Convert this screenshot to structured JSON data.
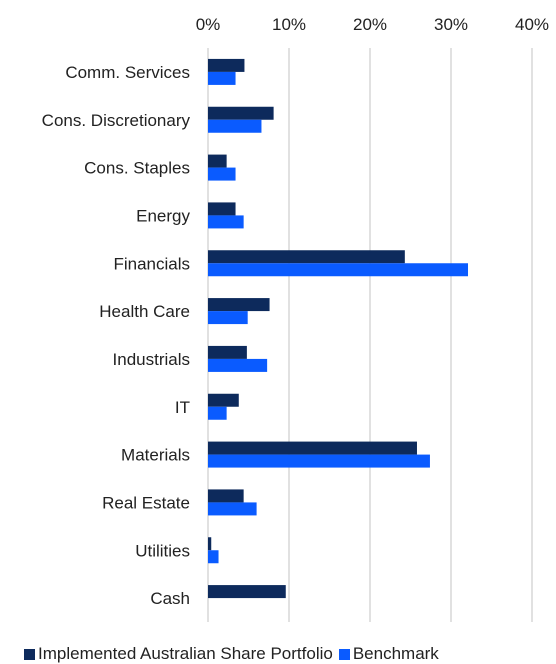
{
  "chart_data": {
    "type": "bar",
    "orientation": "horizontal",
    "categories": [
      "Comm. Services",
      "Cons. Discretionary",
      "Cons. Staples",
      "Energy",
      "Financials",
      "Health Care",
      "Industrials",
      "IT",
      "Materials",
      "Real Estate",
      "Utilities",
      "Cash"
    ],
    "series": [
      {
        "name": "Implemented Australian Share Portfolio",
        "color": "#0d2a5c",
        "values": [
          4.5,
          8.1,
          2.3,
          3.4,
          24.3,
          7.6,
          4.8,
          3.8,
          25.8,
          4.4,
          0.4,
          9.6
        ]
      },
      {
        "name": "Benchmark",
        "color": "#0a5bff",
        "values": [
          3.4,
          6.6,
          3.4,
          4.4,
          32.1,
          4.9,
          7.3,
          2.3,
          27.4,
          6.0,
          1.3,
          0
        ]
      }
    ],
    "xlim": [
      0,
      40
    ],
    "xticks": [
      "0%",
      "10%",
      "20%",
      "30%",
      "40%"
    ],
    "xtick_values": [
      0,
      10,
      20,
      30,
      40
    ],
    "grid": "vertical",
    "legend_position": "bottom"
  }
}
